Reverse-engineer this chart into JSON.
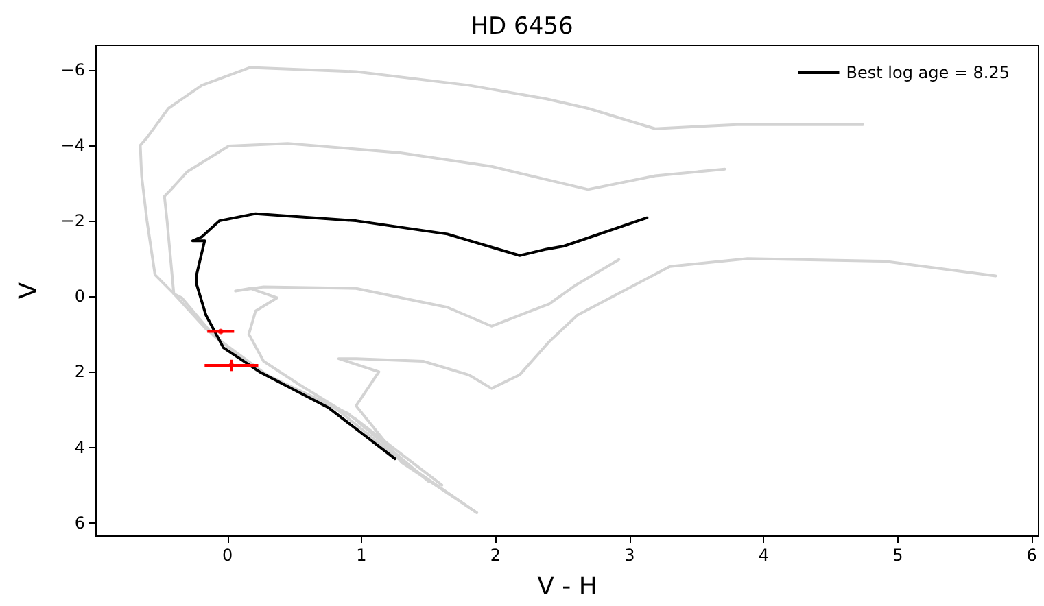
{
  "chart_data": {
    "type": "line",
    "title": "HD 6456",
    "xlabel": "V - H",
    "ylabel": "V",
    "xlim": [
      -0.98,
      6.05
    ],
    "xticks": [
      0,
      1,
      2,
      3,
      4,
      5,
      6
    ],
    "ylim": [
      6.35,
      -6.65
    ],
    "yticks": [
      {
        "value": -6,
        "label": "−6"
      },
      {
        "value": -4,
        "label": "−4"
      },
      {
        "value": -2,
        "label": "−2"
      },
      0,
      2,
      4,
      6
    ],
    "grid": false,
    "legend": "top right",
    "line_style": "solid",
    "series": [
      {
        "color": "#d3d3d3",
        "x": [
          1.86,
          1.29,
          0.82,
          0.21,
          -0.16,
          -0.4,
          -0.54,
          -0.6,
          -0.64,
          -0.65,
          -0.6,
          -0.44,
          -0.19,
          0.17,
          0.96,
          1.8,
          2.38,
          2.69,
          3.19,
          3.8,
          4.74
        ],
        "values": [
          5.73,
          4.34,
          3.0,
          1.94,
          0.86,
          -0.07,
          -0.57,
          -2.0,
          -3.19,
          -4.0,
          -4.2,
          -4.98,
          -5.59,
          -6.06,
          -5.95,
          -5.59,
          -5.23,
          -4.98,
          -4.44,
          -4.55,
          -4.55
        ]
      },
      {
        "color": "#d3d3d3",
        "x": [
          1.5,
          0.9,
          0.3,
          -0.1,
          -0.34,
          -0.4,
          -0.45,
          -0.47,
          -0.42,
          -0.3,
          0.01,
          0.45,
          1.29,
          1.97,
          2.18,
          2.69,
          3.19,
          3.71
        ],
        "values": [
          4.9,
          3.1,
          2.1,
          1.05,
          0.04,
          -0.07,
          -2.0,
          -2.65,
          -2.83,
          -3.3,
          -3.98,
          -4.05,
          -3.8,
          -3.44,
          -3.26,
          -2.83,
          -3.19,
          -3.37
        ]
      },
      {
        "color": "#d3d3d3",
        "x": [
          1.6,
          0.96,
          0.55,
          0.27,
          0.16,
          0.21,
          0.37,
          0.17,
          0.06,
          0.27,
          0.96,
          1.64,
          1.97,
          2.18,
          2.4,
          2.6,
          2.92
        ],
        "values": [
          5.0,
          3.26,
          2.37,
          1.72,
          1.0,
          0.39,
          0.04,
          -0.21,
          -0.14,
          -0.25,
          -0.21,
          0.29,
          0.79,
          0.5,
          0.2,
          -0.3,
          -0.97
        ]
      },
      {
        "color": "#d3d3d3",
        "x": [
          1.86,
          1.3,
          0.96,
          1.13,
          0.83,
          0.96,
          1.46,
          1.8,
          1.97,
          2.18,
          2.4,
          2.61,
          3.3,
          3.88,
          4.9,
          5.73
        ],
        "values": [
          5.73,
          4.4,
          2.9,
          2.0,
          1.65,
          1.65,
          1.72,
          2.08,
          2.44,
          2.08,
          1.2,
          0.5,
          -0.79,
          -1.0,
          -0.93,
          -0.54
        ]
      },
      {
        "name": "Best log age = 8.25",
        "color": "#000000",
        "x": [
          1.25,
          0.75,
          0.24,
          -0.03,
          -0.16,
          -0.23,
          -0.23,
          -0.17,
          -0.26,
          -0.19,
          -0.06,
          0.21,
          0.96,
          1.64,
          2.18,
          2.38,
          2.51,
          3.13
        ],
        "values": [
          4.3,
          2.94,
          2.0,
          1.36,
          0.5,
          -0.32,
          -0.57,
          -1.47,
          -1.47,
          -1.58,
          -2.0,
          -2.19,
          -2.0,
          -1.65,
          -1.08,
          -1.25,
          -1.33,
          -2.08
        ]
      },
      {
        "type": "scatter",
        "color": "#ff0000",
        "x": [
          -0.05,
          0.03
        ],
        "values": [
          0.93,
          1.83
        ],
        "errors": [
          0.05,
          0.15
        ],
        "xerrors": [
          0.1,
          0.2
        ]
      }
    ]
  }
}
